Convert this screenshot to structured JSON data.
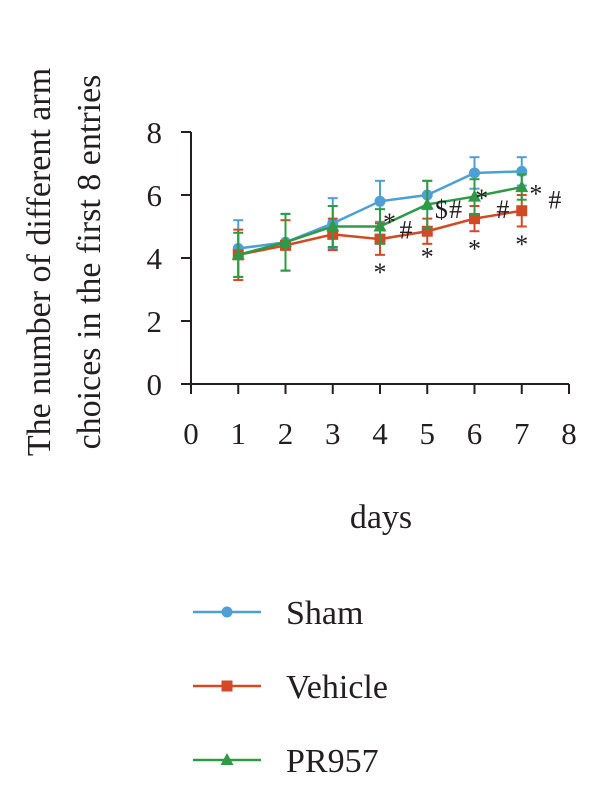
{
  "chart_data": {
    "type": "line",
    "title": "",
    "xlabel": "days",
    "ylabel_lines": [
      "The number of different arm",
      "choices in the first 8 entries"
    ],
    "xlim": [
      0,
      8
    ],
    "ylim": [
      0,
      8
    ],
    "xticks": [
      0,
      1,
      2,
      3,
      4,
      5,
      6,
      7,
      8
    ],
    "yticks": [
      0,
      2,
      4,
      6,
      8
    ],
    "grid": false,
    "legend_position": "bottom",
    "x": [
      1,
      2,
      3,
      4,
      5,
      6,
      7
    ],
    "series": [
      {
        "name": "Sham",
        "color": "#4e9fd4",
        "marker": "circle",
        "values": [
          4.3,
          4.5,
          5.1,
          5.8,
          6.0,
          6.7,
          6.75
        ],
        "errors": [
          0.9,
          0.9,
          0.8,
          0.65,
          0.45,
          0.5,
          0.45
        ]
      },
      {
        "name": "Vehicle",
        "color": "#d14a25",
        "marker": "square",
        "values": [
          4.1,
          4.4,
          4.75,
          4.6,
          4.85,
          5.25,
          5.5
        ],
        "errors": [
          0.8,
          0.8,
          0.5,
          0.5,
          0.4,
          0.4,
          0.5
        ]
      },
      {
        "name": "PR957",
        "color": "#2e9a48",
        "marker": "triangle",
        "values": [
          4.1,
          4.5,
          5.0,
          5.0,
          5.7,
          5.95,
          6.25
        ],
        "errors": [
          0.7,
          0.9,
          0.65,
          0.55,
          0.75,
          0.55,
          0.4
        ]
      }
    ],
    "annotations": [
      {
        "text": "*",
        "x": 4.0,
        "y": 3.55
      },
      {
        "text": "*",
        "x": 5.0,
        "y": 4.05
      },
      {
        "text": "*",
        "x": 6.0,
        "y": 4.3
      },
      {
        "text": "*",
        "x": 7.0,
        "y": 4.45
      },
      {
        "text": "*",
        "x": 4.2,
        "y": 5.15
      },
      {
        "text": "#",
        "x": 4.55,
        "y": 4.9
      },
      {
        "text": "$",
        "x": 5.3,
        "y": 5.55
      },
      {
        "text": "#",
        "x": 5.6,
        "y": 5.55
      },
      {
        "text": "*",
        "x": 6.15,
        "y": 5.9
      },
      {
        "text": "#",
        "x": 6.6,
        "y": 5.55
      },
      {
        "text": "*",
        "x": 7.3,
        "y": 6.05
      },
      {
        "text": "#",
        "x": 7.7,
        "y": 5.85
      }
    ]
  }
}
